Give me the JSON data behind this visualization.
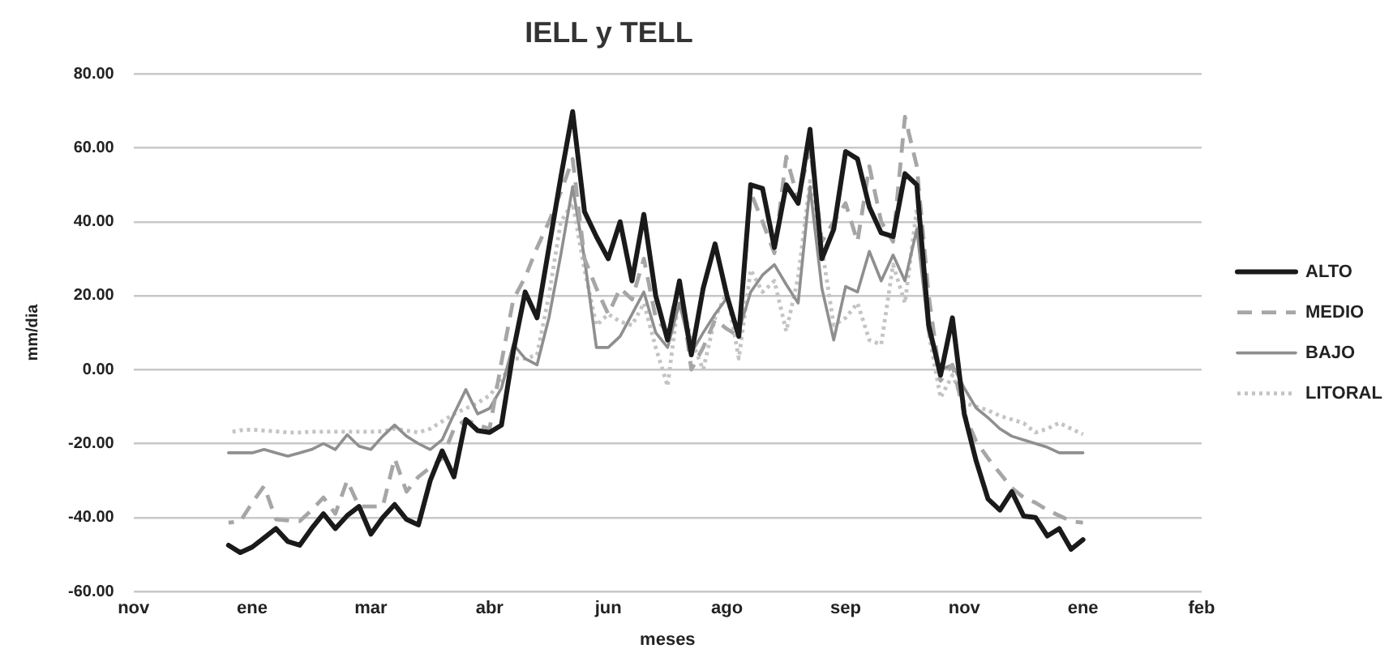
{
  "chart_data": {
    "type": "line",
    "title": "IELL y TELL",
    "xlabel": "meses",
    "ylabel": "mm/dia",
    "categories": [
      "nov",
      null,
      null,
      null,
      null,
      null,
      null,
      null,
      null,
      null,
      "ene",
      null,
      null,
      null,
      null,
      null,
      null,
      null,
      null,
      null,
      "mar",
      null,
      null,
      null,
      null,
      null,
      null,
      null,
      null,
      null,
      "abr",
      null,
      null,
      null,
      null,
      null,
      null,
      null,
      null,
      null,
      "jun",
      null,
      null,
      null,
      null,
      null,
      null,
      null,
      null,
      null,
      "ago",
      null,
      null,
      null,
      null,
      null,
      null,
      null,
      null,
      null,
      "sep",
      null,
      null,
      null,
      null,
      null,
      null,
      null,
      null,
      null,
      "nov",
      null,
      null,
      null,
      null,
      null,
      null,
      null,
      null,
      null,
      "ene",
      null,
      null,
      null,
      null,
      null,
      null,
      null,
      null,
      null,
      "feb"
    ],
    "ylim": [
      -60,
      80
    ],
    "yticks": [
      {
        "value": -60,
        "label": "-60.00"
      },
      {
        "value": -40,
        "label": "-40.00"
      },
      {
        "value": -20,
        "label": "-20.00"
      },
      {
        "value": 0,
        "label": "0.00"
      },
      {
        "value": 20,
        "label": "20.00"
      },
      {
        "value": 40,
        "label": "40.00"
      },
      {
        "value": 60,
        "label": "60.00"
      },
      {
        "value": 80,
        "label": "80.00"
      }
    ],
    "grid": "y",
    "legend": "right",
    "marker": "none",
    "series": [
      {
        "name": "ALTO",
        "color": "#1a1a1a",
        "line_style": "solid",
        "values": [
          null,
          null,
          null,
          null,
          null,
          null,
          null,
          null,
          -47.5,
          -49.5,
          -48,
          -45.5,
          -43,
          -46.5,
          -47.5,
          -43,
          -39,
          -43,
          -39.5,
          -37,
          -44.5,
          -40,
          -36.5,
          -40.5,
          -42,
          -30,
          -22,
          -29,
          -13.5,
          -16.5,
          -17,
          -15,
          5,
          21,
          14,
          33,
          52,
          69.8,
          42.7,
          36,
          30,
          40,
          24,
          42,
          20,
          8,
          24,
          4,
          22,
          34,
          20,
          9,
          50,
          49,
          33,
          50,
          45,
          65,
          30,
          38,
          59,
          57,
          44,
          37,
          36,
          53,
          50,
          12,
          -1.5,
          14,
          -12,
          -24.7,
          -35,
          -38,
          -33,
          -39.6,
          -40,
          -45,
          -43,
          -48.6,
          -46,
          null,
          null,
          null,
          null,
          null,
          null,
          null,
          null,
          null,
          null
        ]
      },
      {
        "name": "MEDIO",
        "color": "#a6a6a6",
        "line_style": "dashed",
        "values": [
          null,
          null,
          null,
          null,
          null,
          null,
          null,
          null,
          -41.4,
          -41,
          -36,
          -31.5,
          -40.5,
          -40.8,
          -41,
          -38,
          -34.6,
          -39,
          -30,
          -37,
          -37,
          -37,
          -24,
          -33,
          -29,
          -26.5,
          -24,
          -16,
          -13.5,
          -15,
          -16,
          2,
          19,
          25,
          33,
          40,
          48,
          57,
          30,
          22,
          15,
          22,
          19,
          30,
          14,
          10,
          24,
          0,
          6,
          13.5,
          11,
          9,
          48,
          40,
          31.5,
          57.6,
          46,
          60,
          34.6,
          40,
          45,
          34.6,
          55,
          40,
          34.6,
          68.4,
          55,
          20,
          -3,
          1.3,
          -12,
          -19.4,
          -24,
          -28,
          -32,
          -34.6,
          -36,
          -38,
          -39.5,
          -41,
          -41.4,
          null,
          null,
          null,
          null,
          null,
          null,
          null,
          null,
          null,
          null
        ]
      },
      {
        "name": "BAJO",
        "color": "#8f8f8f",
        "line_style": "solid",
        "values": [
          null,
          null,
          null,
          null,
          null,
          null,
          null,
          null,
          -22.5,
          -22.5,
          -22.5,
          -21.6,
          -22.5,
          -23.4,
          -22.5,
          -21.6,
          -20,
          -21.6,
          -17.6,
          -20.7,
          -21.6,
          -18,
          -15,
          -18,
          -20,
          -21.6,
          -19,
          -12,
          -5.4,
          -12,
          -10.5,
          -5,
          6.8,
          3,
          1.3,
          14,
          31,
          49.5,
          30,
          6,
          6,
          9,
          15,
          21,
          10,
          6,
          18,
          4.5,
          10,
          15,
          19.4,
          10.4,
          21,
          25.6,
          28.4,
          23,
          18,
          49.5,
          22,
          8,
          22.5,
          21,
          32,
          24,
          31,
          24,
          38,
          10,
          0,
          1.3,
          -5,
          -10.4,
          -13,
          -16,
          -18,
          -19,
          -20,
          -21,
          -22.5,
          -22.5,
          -22.5,
          null,
          null,
          null,
          null,
          null,
          null,
          null,
          null,
          null,
          null
        ]
      },
      {
        "name": "LITORAL",
        "color": "#c4c4c4",
        "line_style": "dotted",
        "values": [
          null,
          null,
          null,
          null,
          null,
          null,
          null,
          null,
          -17,
          -16.4,
          -16.2,
          -16.5,
          -16.7,
          -17,
          -17,
          -16.8,
          -16.8,
          -16.8,
          -16.8,
          -16.8,
          -16.8,
          -16.7,
          -16,
          -16.5,
          -17,
          -16,
          -14,
          -12,
          -10.5,
          -9,
          -7,
          -3,
          3,
          3,
          4,
          20,
          40,
          45,
          27,
          12,
          15,
          13,
          12,
          18,
          6,
          -4.5,
          21,
          8,
          0,
          14,
          21,
          3,
          27,
          21,
          24,
          10.4,
          25,
          51,
          33,
          12,
          14,
          18,
          8,
          6.8,
          28.4,
          18,
          43.6,
          10,
          -7.6,
          -1.5,
          -9,
          -10,
          -11,
          -12.5,
          -13.5,
          -14.5,
          -17,
          -16,
          -14.4,
          -16,
          -17.5,
          null,
          null,
          null,
          null,
          null,
          null,
          null,
          null,
          null,
          null
        ]
      }
    ]
  }
}
